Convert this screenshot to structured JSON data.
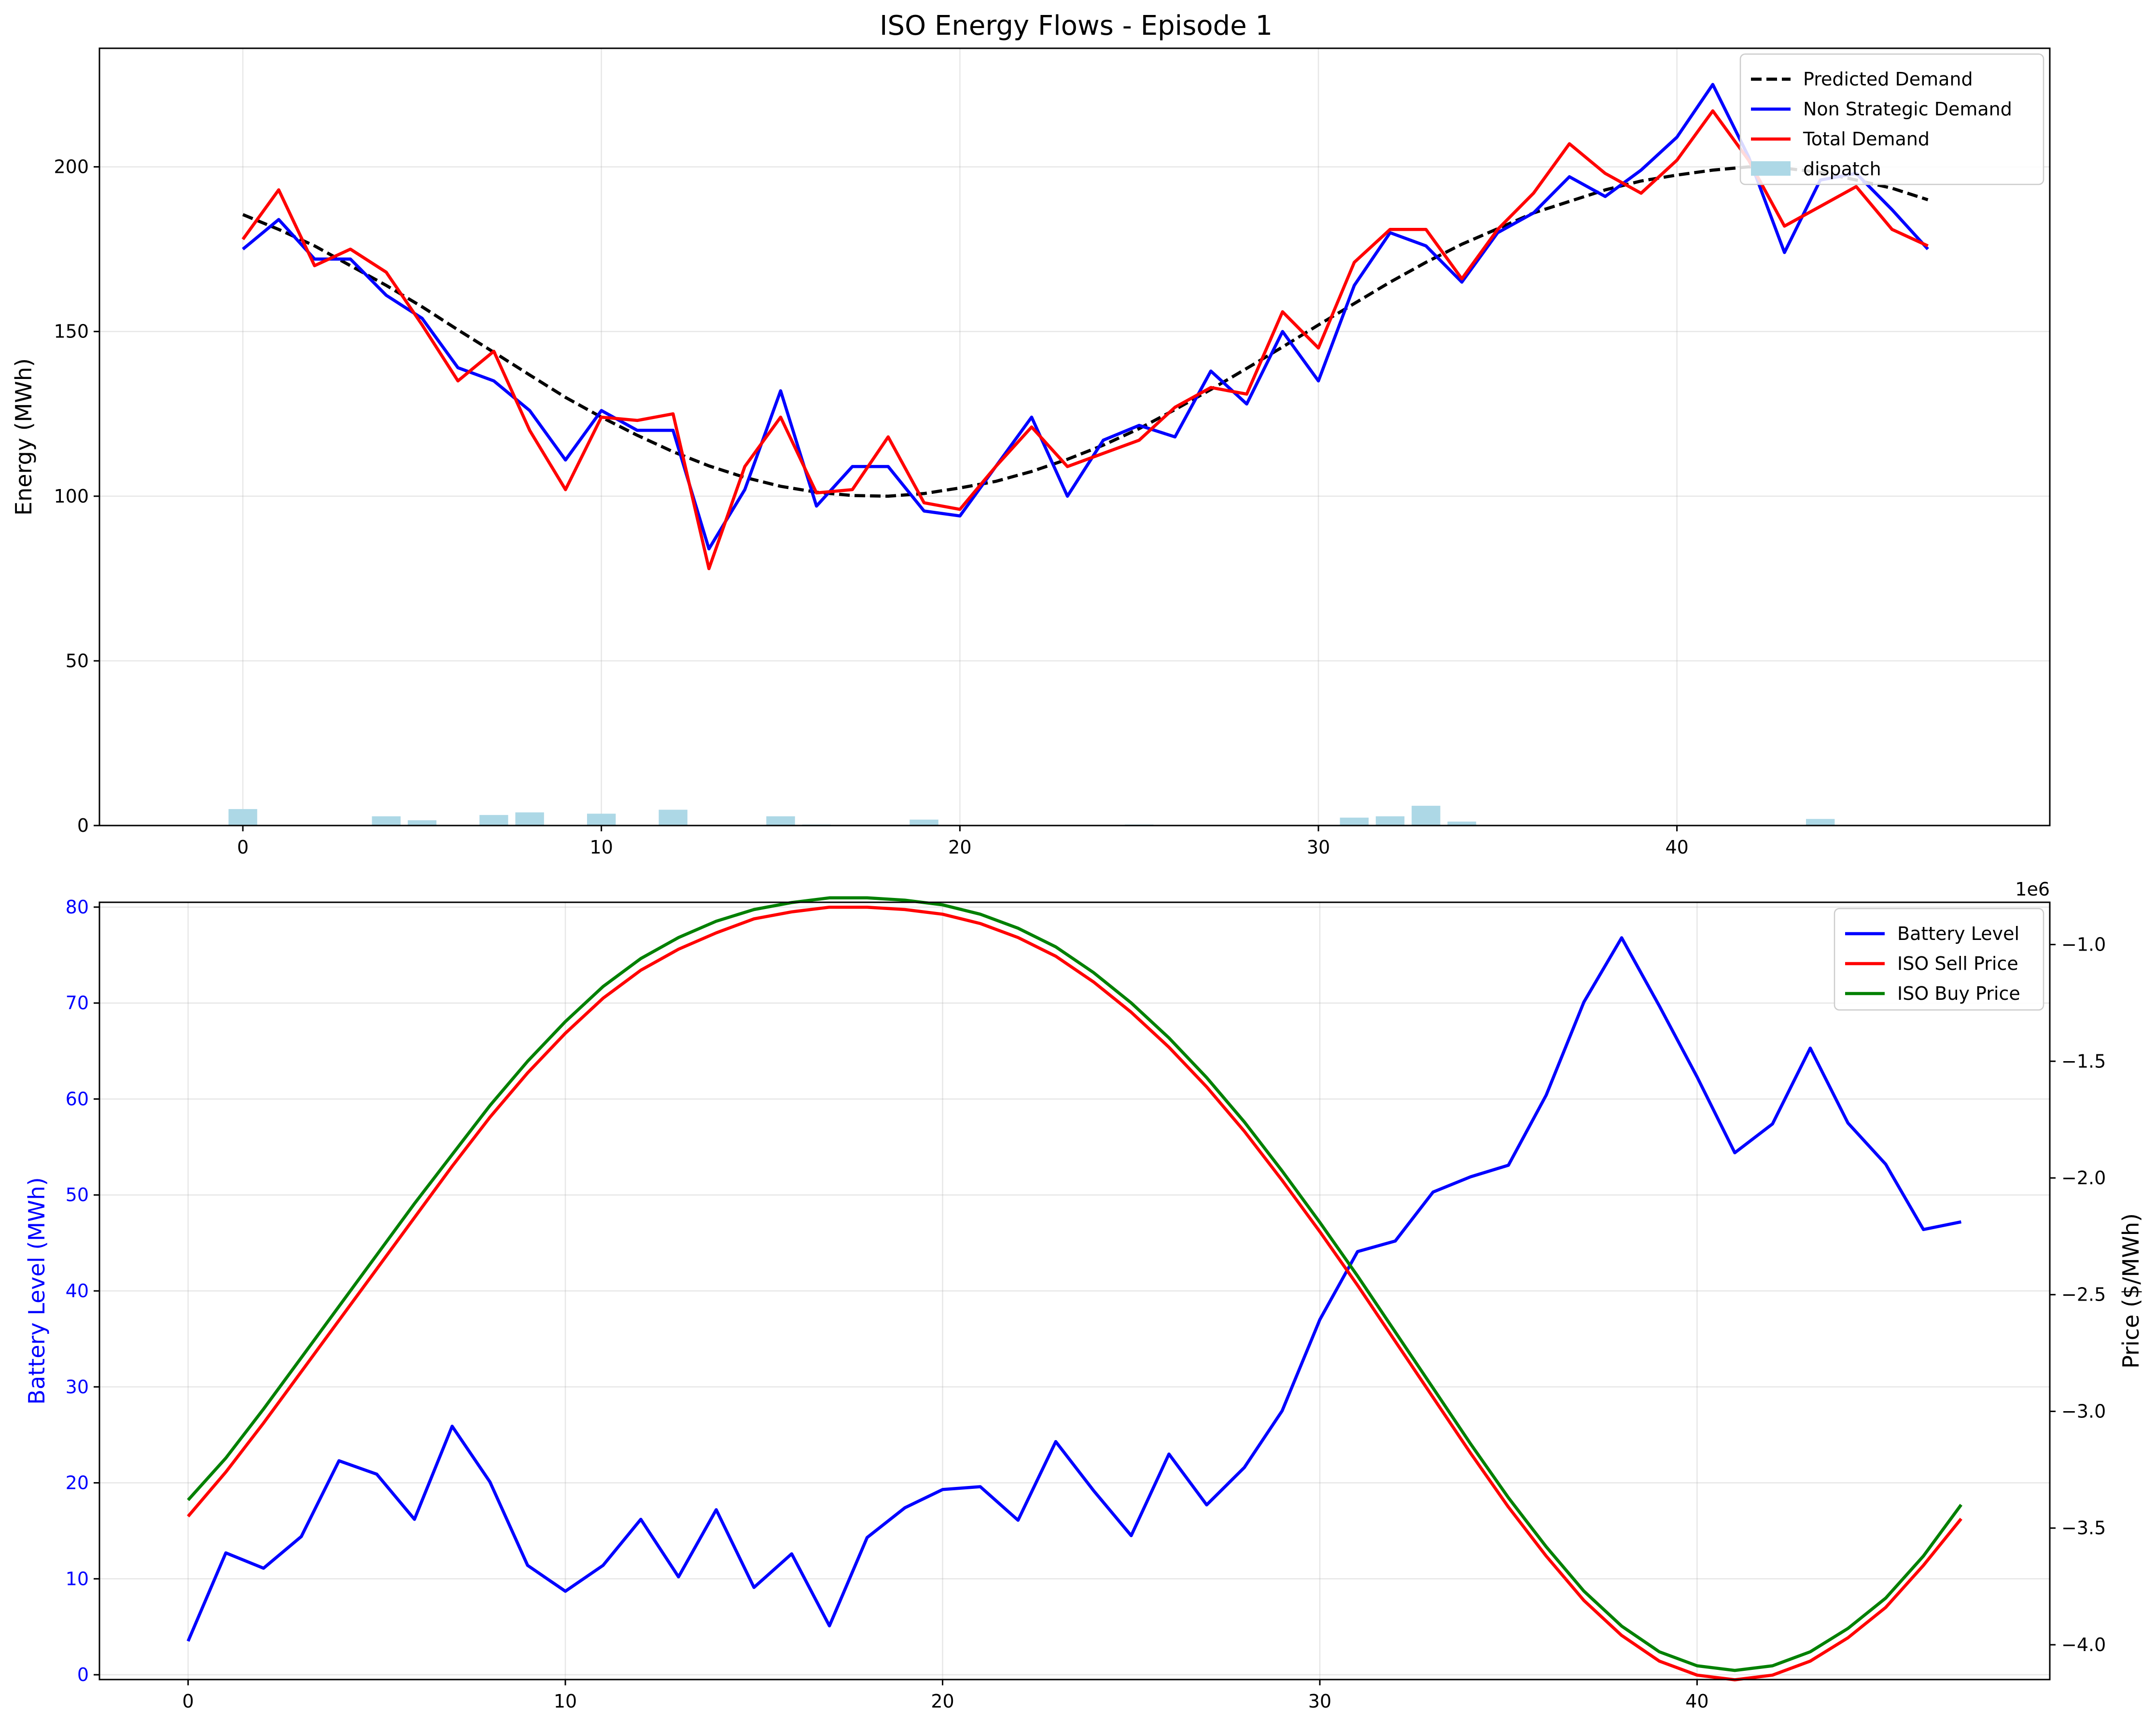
{
  "chart_data": [
    {
      "type": "line",
      "title": "ISO Energy Flows - Episode 1",
      "xlabel": "",
      "ylabel": "Energy (MWh)",
      "xlim": [
        -4,
        50.4
      ],
      "ylim": [
        0,
        236
      ],
      "xticks": [
        0,
        10,
        20,
        30,
        40
      ],
      "yticks": [
        0,
        50,
        100,
        150,
        200
      ],
      "grid": true,
      "legend": "top-right",
      "x": [
        0,
        1,
        2,
        3,
        4,
        5,
        6,
        7,
        8,
        9,
        10,
        11,
        12,
        13,
        14,
        15,
        16,
        17,
        18,
        19,
        20,
        21,
        22,
        23,
        24,
        25,
        26,
        27,
        28,
        29,
        30,
        31,
        32,
        33,
        34,
        35,
        36,
        37,
        38,
        39,
        40,
        41,
        42,
        43,
        44,
        45,
        46,
        47
      ],
      "series": [
        {
          "name": "Predicted Demand",
          "style": "dashed",
          "color": "#000000",
          "values": [
            185.5,
            181,
            176,
            170,
            164,
            157.5,
            150.5,
            143.7,
            136.8,
            130,
            124,
            118.5,
            113.5,
            109.2,
            105.7,
            103,
            101.2,
            100.2,
            100,
            100.8,
            102.5,
            104.5,
            107.5,
            111.2,
            115.5,
            120.5,
            126.3,
            132.4,
            138.8,
            145.3,
            152,
            158.5,
            165,
            171,
            176.5,
            181.2,
            186,
            189.5,
            193,
            195.7,
            197.5,
            199,
            200,
            199.6,
            198.3,
            196,
            193.5,
            190
          ]
        },
        {
          "name": "Non Strategic Demand",
          "style": "solid",
          "color": "#0000ff",
          "values": [
            175,
            184,
            172,
            172,
            161,
            154,
            139,
            135,
            126,
            111,
            126,
            120,
            120,
            84,
            102,
            132,
            97,
            109,
            109,
            95.5,
            94,
            109,
            124,
            100,
            117,
            121.5,
            118,
            138,
            128,
            150,
            135,
            164,
            180,
            176,
            165,
            180,
            186,
            197,
            191,
            199,
            209,
            225,
            203,
            174,
            196,
            198,
            187,
            175
          ]
        },
        {
          "name": "Total Demand",
          "style": "solid",
          "color": "#ff0000",
          "values": [
            178,
            193,
            170,
            175,
            168,
            152,
            135,
            144,
            120,
            102,
            124,
            123,
            125,
            78,
            109,
            124,
            101,
            102,
            118,
            98,
            96,
            109,
            121,
            109,
            113,
            117,
            127,
            133,
            131,
            156,
            145,
            171,
            181,
            181,
            166,
            181,
            192,
            207,
            198,
            192,
            202,
            217,
            202,
            182,
            188,
            194,
            181,
            176
          ]
        },
        {
          "name": "dispatch",
          "style": "bar",
          "color": "#add8e6",
          "values": [
            5,
            0,
            0,
            0,
            2.8,
            1.6,
            0,
            3.2,
            4,
            0,
            3.6,
            0,
            4.8,
            0,
            0,
            2.8,
            0.3,
            0,
            0,
            1.8,
            0,
            0,
            0,
            0,
            0,
            0.3,
            0,
            0,
            0,
            0,
            0,
            2.4,
            2.8,
            6,
            1.2,
            0,
            0,
            0,
            0,
            0,
            0,
            0,
            0,
            0,
            2,
            0,
            0,
            0
          ]
        }
      ]
    },
    {
      "type": "line",
      "title": "",
      "xlabel": "",
      "ylabel": "Battery Level (MWh)",
      "y2label": "Price ($/MWh)",
      "y2_offset_text": "1e6",
      "xlim": [
        -2.35,
        49.35
      ],
      "ylim": [
        -0.5,
        80.5
      ],
      "y2lim": [
        -4.149,
        -0.819
      ],
      "xticks": [
        0,
        10,
        20,
        30,
        40
      ],
      "yticks": [
        0,
        10,
        20,
        30,
        40,
        50,
        60,
        70,
        80
      ],
      "y2ticks": [
        -4.0,
        -3.5,
        -3.0,
        -2.5,
        -2.0,
        -1.5,
        -1.0
      ],
      "y2ticklabels": [
        "−4.0",
        "−3.5",
        "−3.0",
        "−2.5",
        "−2.0",
        "−1.5",
        "−1.0"
      ],
      "grid": true,
      "legend": "top-right",
      "x": [
        0,
        1,
        2,
        3,
        4,
        5,
        6,
        7,
        8,
        9,
        10,
        11,
        12,
        13,
        14,
        15,
        16,
        17,
        18,
        19,
        20,
        21,
        22,
        23,
        24,
        25,
        26,
        27,
        28,
        29,
        30,
        31,
        32,
        33,
        34,
        35,
        36,
        37,
        38,
        39,
        40,
        41,
        42,
        43,
        44,
        45,
        46,
        47
      ],
      "series": [
        {
          "name": "Battery Level",
          "axis": "left",
          "color": "#0000ff",
          "values": [
            3.5,
            12.7,
            11.1,
            14.4,
            22.3,
            20.9,
            16.2,
            25.9,
            20.1,
            11.4,
            8.7,
            11.4,
            16.2,
            10.2,
            17.2,
            9.1,
            12.6,
            5.1,
            14.3,
            17.4,
            19.3,
            19.6,
            16.1,
            24.3,
            19.2,
            14.5,
            23,
            17.7,
            21.6,
            27.5,
            37,
            44.1,
            45.2,
            50.3,
            51.9,
            53.1,
            60.4,
            70.1,
            76.8,
            69.7,
            62.3,
            54.4,
            57.4,
            65.3,
            57.5,
            53.2,
            46.4,
            47.2
          ]
        },
        {
          "name": "ISO Sell Price",
          "axis": "right",
          "color": "#ff0000",
          "values": [
            -3.45,
            -3.26,
            -3.05,
            -2.83,
            -2.61,
            -2.39,
            -2.17,
            -1.95,
            -1.74,
            -1.55,
            -1.38,
            -1.23,
            -1.11,
            -1.02,
            -0.95,
            -0.89,
            -0.86,
            -0.84,
            -0.84,
            -0.85,
            -0.87,
            -0.91,
            -0.97,
            -1.05,
            -1.16,
            -1.29,
            -1.44,
            -1.61,
            -1.8,
            -2.01,
            -2.23,
            -2.46,
            -2.7,
            -2.94,
            -3.18,
            -3.41,
            -3.62,
            -3.81,
            -3.96,
            -4.07,
            -4.13,
            -4.15,
            -4.13,
            -4.07,
            -3.97,
            -3.84,
            -3.66,
            -3.46
          ]
        },
        {
          "name": "ISO Buy Price",
          "axis": "right",
          "color": "#008000",
          "values": [
            -3.38,
            -3.2,
            -2.99,
            -2.77,
            -2.55,
            -2.33,
            -2.11,
            -1.9,
            -1.69,
            -1.5,
            -1.33,
            -1.18,
            -1.06,
            -0.97,
            -0.9,
            -0.85,
            -0.82,
            -0.8,
            -0.8,
            -0.81,
            -0.83,
            -0.87,
            -0.93,
            -1.01,
            -1.12,
            -1.25,
            -1.4,
            -1.57,
            -1.76,
            -1.97,
            -2.19,
            -2.42,
            -2.66,
            -2.9,
            -3.14,
            -3.37,
            -3.58,
            -3.77,
            -3.92,
            -4.03,
            -4.09,
            -4.11,
            -4.09,
            -4.03,
            -3.93,
            -3.8,
            -3.62,
            -3.4
          ]
        }
      ]
    }
  ]
}
